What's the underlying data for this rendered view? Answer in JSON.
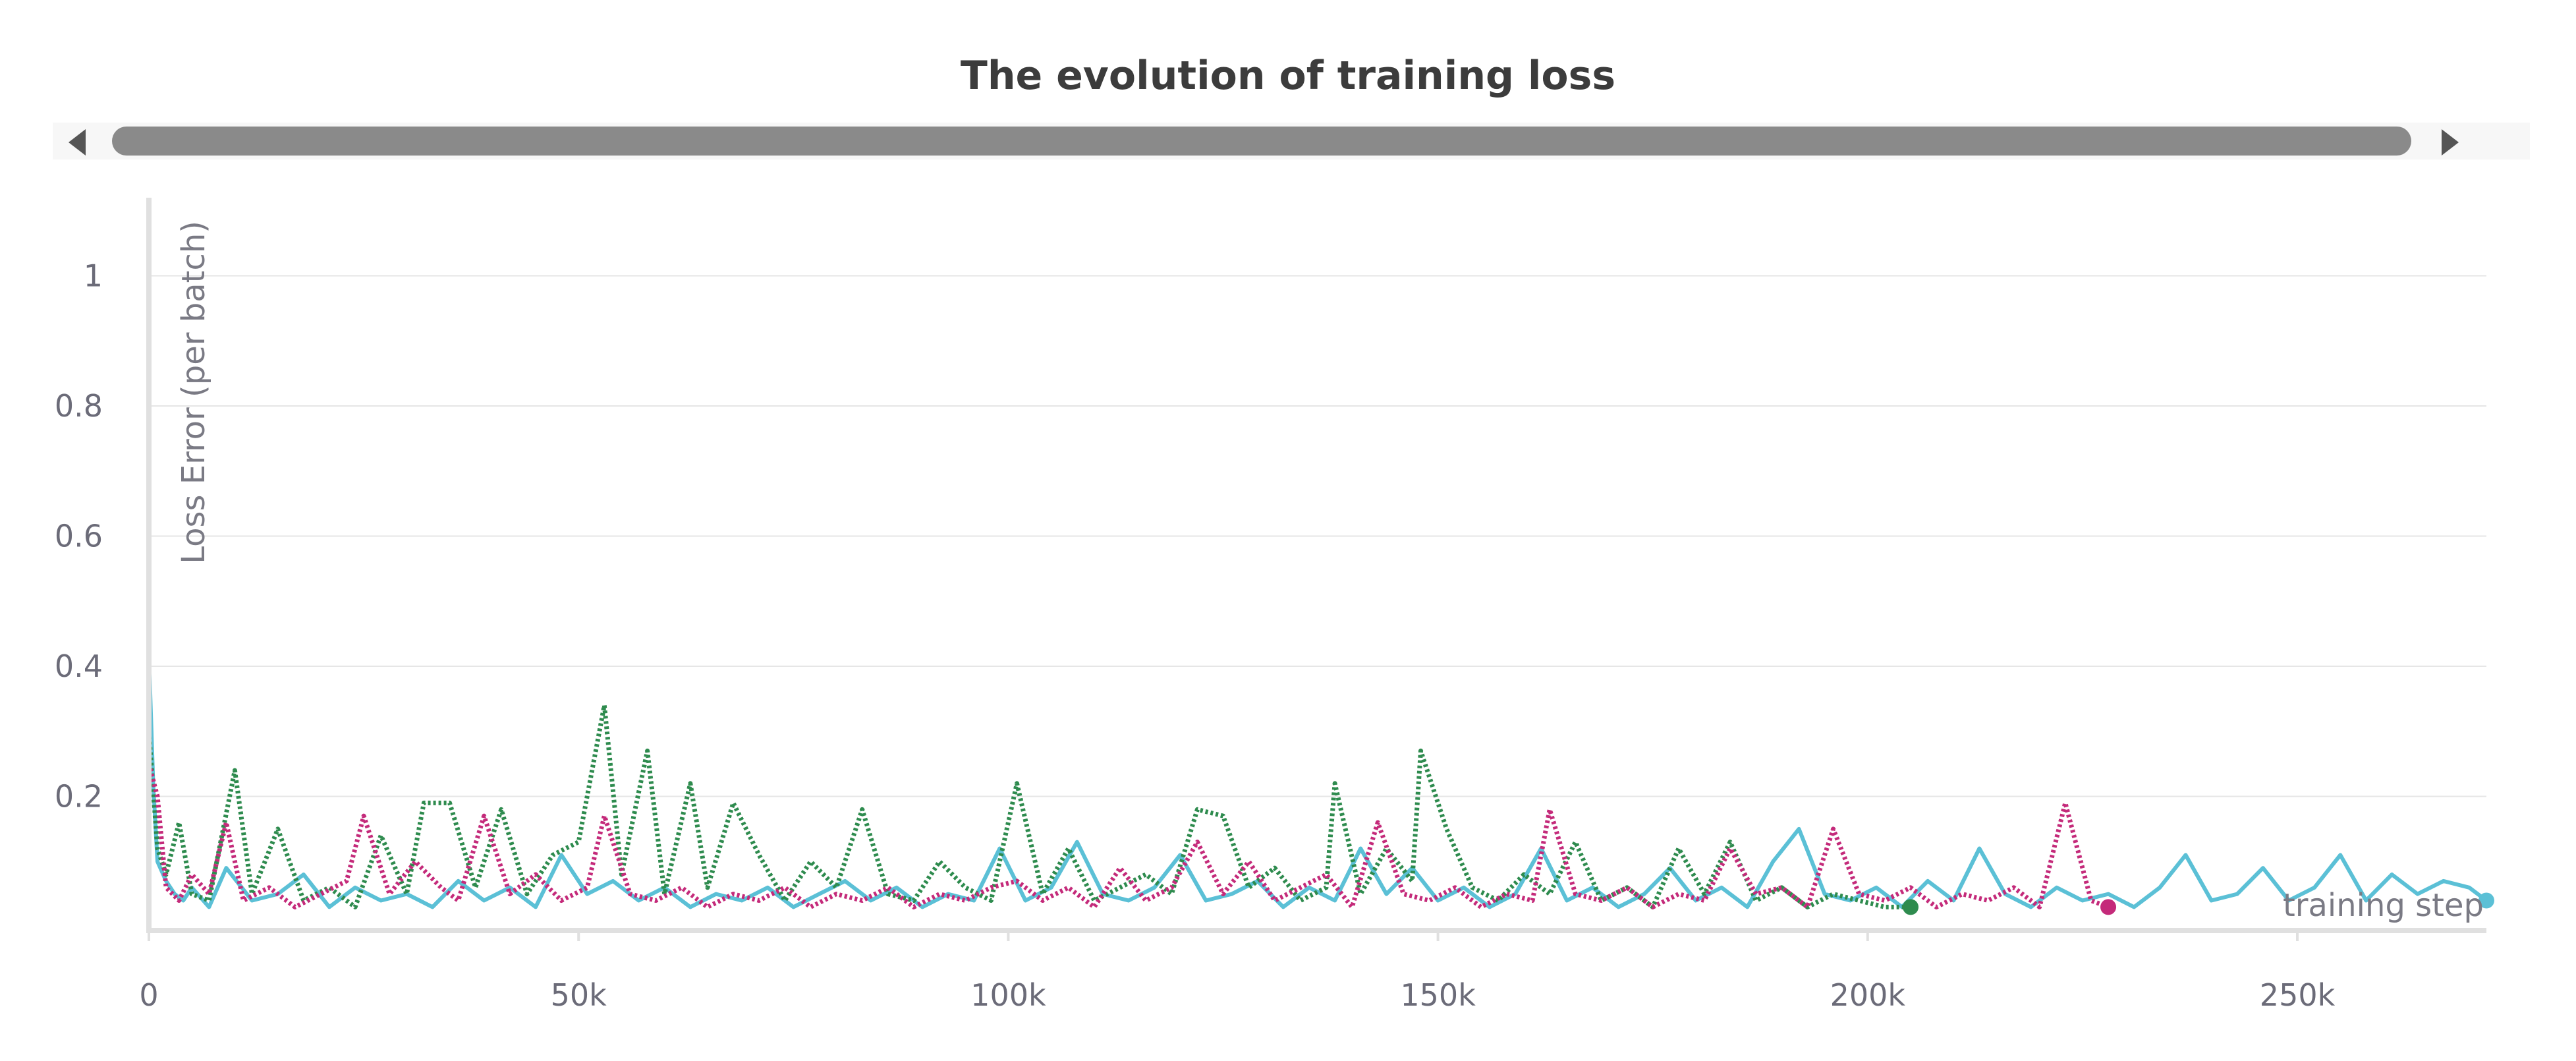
{
  "chart_data": {
    "type": "line",
    "title": "The evolution of training loss",
    "xlabel": "training step",
    "ylabel": "Loss Error (per batch)",
    "xlim": [
      0,
      272000
    ],
    "ylim": [
      0,
      1.12
    ],
    "x_ticks": [
      0,
      50000,
      100000,
      150000,
      200000,
      250000
    ],
    "x_tick_labels": [
      "0",
      "50k",
      "100k",
      "150k",
      "200k",
      "250k"
    ],
    "y_ticks": [
      0.2,
      0.4,
      0.6,
      0.8,
      1
    ],
    "y_tick_labels": [
      "0.2",
      "0.4",
      "0.6",
      "0.8",
      "1"
    ],
    "grid": true,
    "legend": "none",
    "colors": {
      "series_1": "#5bc0d6",
      "series_2": "#2e8b4e",
      "series_3": "#c42a7a",
      "grid": "#e6e6e6",
      "axis": "#e0e0e0"
    },
    "series": [
      {
        "style": "solid",
        "color": "#5bc0d6",
        "x": [
          0,
          500,
          1000,
          2000,
          3000,
          4000,
          5000,
          7000,
          9000,
          12000,
          15000,
          18000,
          21000,
          24000,
          27000,
          30000,
          33000,
          36000,
          39000,
          42000,
          45000,
          48000,
          51000,
          54000,
          57000,
          60000,
          63000,
          66000,
          69000,
          72000,
          75000,
          78000,
          81000,
          84000,
          87000,
          90000,
          93000,
          96000,
          99000,
          102000,
          105000,
          108000,
          111000,
          114000,
          117000,
          120000,
          123000,
          126000,
          129000,
          132000,
          135000,
          138000,
          141000,
          144000,
          147000,
          150000,
          153000,
          156000,
          159000,
          162000,
          165000,
          168000,
          171000,
          174000,
          177000,
          180000,
          183000,
          186000,
          189000,
          192000,
          195000,
          198000,
          201000,
          204000,
          207000,
          210000,
          213000,
          216000,
          219000,
          222000,
          225000,
          228000,
          231000,
          234000,
          237000,
          240000,
          243000,
          246000,
          249000,
          252000,
          255000,
          258000,
          261000,
          264000,
          267000,
          270000,
          272000
        ],
        "y": [
          0.42,
          0.22,
          0.1,
          0.07,
          0.05,
          0.04,
          0.06,
          0.03,
          0.09,
          0.04,
          0.05,
          0.08,
          0.03,
          0.06,
          0.04,
          0.05,
          0.03,
          0.07,
          0.04,
          0.06,
          0.03,
          0.11,
          0.05,
          0.07,
          0.04,
          0.06,
          0.03,
          0.05,
          0.04,
          0.06,
          0.03,
          0.05,
          0.07,
          0.04,
          0.06,
          0.03,
          0.05,
          0.04,
          0.12,
          0.04,
          0.06,
          0.13,
          0.05,
          0.04,
          0.06,
          0.11,
          0.04,
          0.05,
          0.07,
          0.03,
          0.06,
          0.04,
          0.12,
          0.05,
          0.09,
          0.04,
          0.06,
          0.03,
          0.05,
          0.12,
          0.04,
          0.06,
          0.03,
          0.05,
          0.09,
          0.04,
          0.06,
          0.03,
          0.1,
          0.15,
          0.05,
          0.04,
          0.06,
          0.03,
          0.07,
          0.04,
          0.12,
          0.05,
          0.03,
          0.06,
          0.04,
          0.05,
          0.03,
          0.06,
          0.11,
          0.04,
          0.05,
          0.09,
          0.04,
          0.06,
          0.11,
          0.04,
          0.08,
          0.05,
          0.07,
          0.06,
          0.04
        ]
      },
      {
        "style": "dotted",
        "color": "#2e8b4e",
        "x": [
          0,
          1000,
          2000,
          3500,
          5000,
          7000,
          10000,
          12000,
          15000,
          18000,
          21000,
          24000,
          27000,
          30000,
          32000,
          35000,
          38000,
          41000,
          44000,
          47000,
          50000,
          53000,
          55000,
          58000,
          60000,
          63000,
          65000,
          68000,
          71000,
          74000,
          77000,
          80000,
          83000,
          86000,
          89000,
          92000,
          95000,
          98000,
          101000,
          104000,
          107000,
          110000,
          113000,
          116000,
          119000,
          122000,
          125000,
          128000,
          131000,
          134000,
          137000,
          138000,
          141000,
          144000,
          147000,
          148000,
          151000,
          154000,
          157000,
          160000,
          163000,
          166000,
          169000,
          172000,
          175000,
          178000,
          181000,
          184000,
          187000,
          190000,
          193000,
          196000,
          199000,
          202000,
          205000
        ],
        "y": [
          0.3,
          0.12,
          0.08,
          0.16,
          0.05,
          0.04,
          0.24,
          0.05,
          0.15,
          0.04,
          0.06,
          0.03,
          0.14,
          0.05,
          0.19,
          0.19,
          0.06,
          0.18,
          0.05,
          0.11,
          0.13,
          0.34,
          0.08,
          0.27,
          0.05,
          0.22,
          0.06,
          0.19,
          0.11,
          0.04,
          0.1,
          0.06,
          0.18,
          0.05,
          0.04,
          0.1,
          0.06,
          0.04,
          0.22,
          0.05,
          0.12,
          0.04,
          0.06,
          0.08,
          0.05,
          0.18,
          0.17,
          0.06,
          0.09,
          0.04,
          0.06,
          0.22,
          0.05,
          0.12,
          0.07,
          0.27,
          0.15,
          0.06,
          0.04,
          0.08,
          0.05,
          0.13,
          0.04,
          0.06,
          0.03,
          0.12,
          0.05,
          0.13,
          0.04,
          0.06,
          0.03,
          0.05,
          0.04,
          0.03,
          0.03
        ]
      },
      {
        "style": "dotted",
        "color": "#c42a7a",
        "x": [
          0,
          1000,
          2000,
          3500,
          5000,
          7000,
          9000,
          11000,
          14000,
          17000,
          20000,
          23000,
          25000,
          28000,
          31000,
          34000,
          36000,
          39000,
          42000,
          45000,
          48000,
          51000,
          53000,
          56000,
          59000,
          62000,
          65000,
          68000,
          71000,
          74000,
          77000,
          80000,
          83000,
          86000,
          89000,
          92000,
          95000,
          98000,
          101000,
          104000,
          107000,
          110000,
          113000,
          116000,
          119000,
          122000,
          125000,
          128000,
          131000,
          134000,
          137000,
          140000,
          143000,
          146000,
          149000,
          152000,
          155000,
          158000,
          161000,
          163000,
          166000,
          169000,
          172000,
          175000,
          178000,
          181000,
          184000,
          187000,
          190000,
          193000,
          196000,
          199000,
          202000,
          205000,
          208000,
          211000,
          214000,
          217000,
          220000,
          223000,
          226000,
          228000
        ],
        "y": [
          0.25,
          0.2,
          0.06,
          0.04,
          0.08,
          0.05,
          0.16,
          0.04,
          0.06,
          0.03,
          0.05,
          0.07,
          0.17,
          0.05,
          0.1,
          0.06,
          0.04,
          0.17,
          0.05,
          0.08,
          0.04,
          0.06,
          0.17,
          0.05,
          0.04,
          0.06,
          0.03,
          0.05,
          0.04,
          0.06,
          0.03,
          0.05,
          0.04,
          0.06,
          0.03,
          0.05,
          0.04,
          0.06,
          0.07,
          0.04,
          0.06,
          0.03,
          0.09,
          0.04,
          0.06,
          0.13,
          0.05,
          0.1,
          0.04,
          0.06,
          0.08,
          0.03,
          0.16,
          0.05,
          0.04,
          0.06,
          0.03,
          0.05,
          0.04,
          0.18,
          0.05,
          0.04,
          0.06,
          0.03,
          0.05,
          0.04,
          0.12,
          0.05,
          0.06,
          0.03,
          0.15,
          0.05,
          0.04,
          0.06,
          0.03,
          0.05,
          0.04,
          0.06,
          0.03,
          0.19,
          0.04,
          0.03
        ]
      }
    ]
  }
}
